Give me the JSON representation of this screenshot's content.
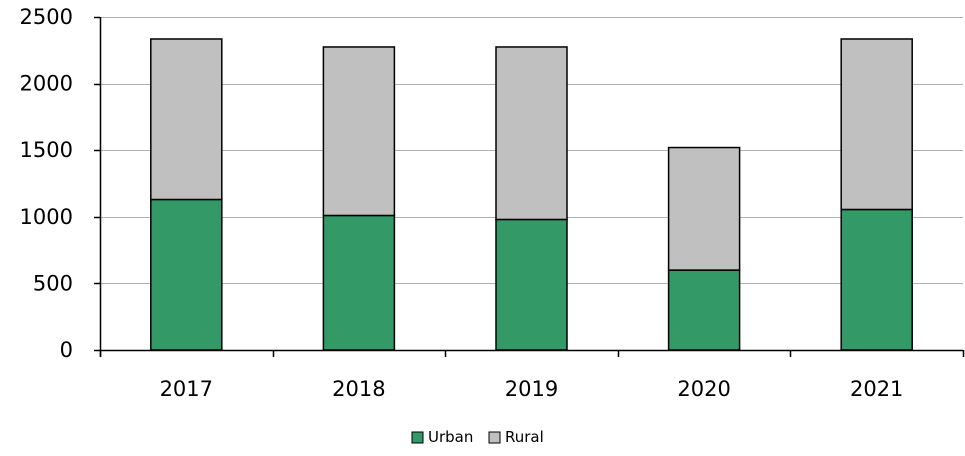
{
  "chart_data": {
    "type": "bar",
    "stacked": true,
    "categories": [
      "2017",
      "2018",
      "2019",
      "2020",
      "2021"
    ],
    "series": [
      {
        "name": "Urban",
        "values": [
          1130,
          1010,
          980,
          600,
          1055
        ],
        "color": "#339966"
      },
      {
        "name": "Rural",
        "values": [
          1205,
          1265,
          1295,
          920,
          1280
        ],
        "color": "#c0c0c0"
      }
    ],
    "title": "",
    "xlabel": "",
    "ylabel": "",
    "ylim": [
      0,
      2500
    ],
    "yticks": [
      "0",
      "500",
      "1000",
      "1500",
      "2000",
      "2500"
    ],
    "grid": true,
    "legend_position": "bottom-center"
  }
}
